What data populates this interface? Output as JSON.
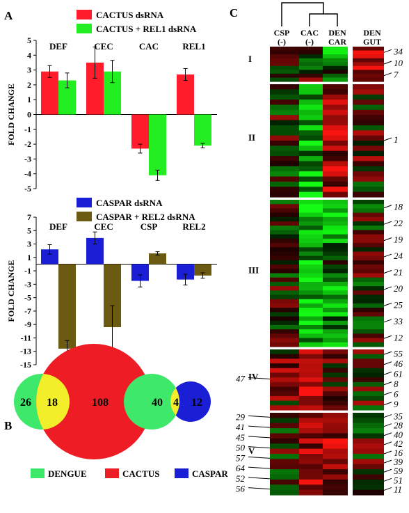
{
  "panel_labels": {
    "a": "A",
    "b": "B",
    "c": "C"
  },
  "y_axis_label": "FOLD CHANGE",
  "chart_data": [
    {
      "type": "bar",
      "categories": [
        "DEF",
        "CEC",
        "CAC",
        "REL1"
      ],
      "ylim": [
        -5,
        5
      ],
      "yticks": [
        -5,
        -4,
        -3,
        -2,
        -1,
        0,
        1,
        2,
        3,
        4,
        5
      ],
      "ylabel": "FOLD CHANGE",
      "legend_position": "top",
      "series": [
        {
          "name": "CACTUS  dsRNA",
          "color": "#ff1d2b",
          "values": [
            2.9,
            3.5,
            -2.3,
            2.7
          ],
          "errors": [
            0.4,
            1.05,
            0.3,
            0.4
          ]
        },
        {
          "name": "CACTUS + REL1  dsRNA",
          "color": "#22ee22",
          "values": [
            2.3,
            2.9,
            -4.1,
            -2.1
          ],
          "errors": [
            0.5,
            0.75,
            0.35,
            0.15
          ]
        }
      ]
    },
    {
      "type": "bar",
      "categories": [
        "DEF",
        "CEC",
        "CSP",
        "REL2"
      ],
      "ylim": [
        -15,
        7
      ],
      "yticks": [
        -15,
        -13,
        -11,
        -9,
        -7,
        -5,
        -3,
        -1,
        1,
        3,
        5,
        7
      ],
      "ylabel": "FOLD CHANGE",
      "legend_position": "top",
      "series": [
        {
          "name": "CASPAR  dsRNA",
          "color": "#1a1fd6",
          "values": [
            2.2,
            3.9,
            -2.5,
            -2.3
          ],
          "errors": [
            0.7,
            0.9,
            0.9,
            0.8
          ]
        },
        {
          "name": "CASPAR + REL2 dsRNA",
          "color": "#6b5a12",
          "values": [
            -12.6,
            -9.4,
            1.6,
            -1.7
          ],
          "errors": [
            1.2,
            3.2,
            0.25,
            0.4
          ]
        }
      ]
    }
  ],
  "venn": {
    "left": {
      "only_a": "26",
      "overlap": "18",
      "only_b": "108"
    },
    "right": {
      "only_a": "40",
      "overlap": "4",
      "only_b": "12"
    },
    "legend": [
      {
        "label": "DENGUE",
        "color": "#3ee86a"
      },
      {
        "label": "CACTUS",
        "color": "#ee1c25"
      },
      {
        "label": "CASPAR",
        "color": "#1a1fd6"
      }
    ],
    "overlap_color": "#f2ef2a"
  },
  "heatmap": {
    "columns": [
      {
        "top": "CSP",
        "bottom": "(-)"
      },
      {
        "top": "CAC",
        "bottom": "(-)"
      },
      {
        "top": "DEN",
        "bottom": "CAR"
      },
      {
        "top": "DEN",
        "bottom": "GUT"
      }
    ],
    "clusters": [
      {
        "label": "I",
        "rows": 9,
        "left": [],
        "right": [
          "34",
          "10",
          "7"
        ]
      },
      {
        "label": "II",
        "rows": 22,
        "left": [],
        "right": [
          "1"
        ]
      },
      {
        "label": "III",
        "rows": 34,
        "left": [],
        "right": [
          "18",
          "22",
          "19",
          "24",
          "21",
          "20",
          "25",
          "33",
          "12"
        ]
      },
      {
        "label": "IV",
        "rows": 13,
        "left": [
          "47"
        ],
        "right": [
          "55",
          "46",
          "61",
          "8",
          "6",
          "9"
        ]
      },
      {
        "label": "V",
        "rows": 16,
        "left": [
          "29",
          "41",
          "45",
          "50",
          "57",
          "64",
          "52",
          "56"
        ],
        "right": [
          "35",
          "28",
          "40",
          "42",
          "16",
          "39",
          "59",
          "51",
          "11"
        ]
      }
    ]
  }
}
